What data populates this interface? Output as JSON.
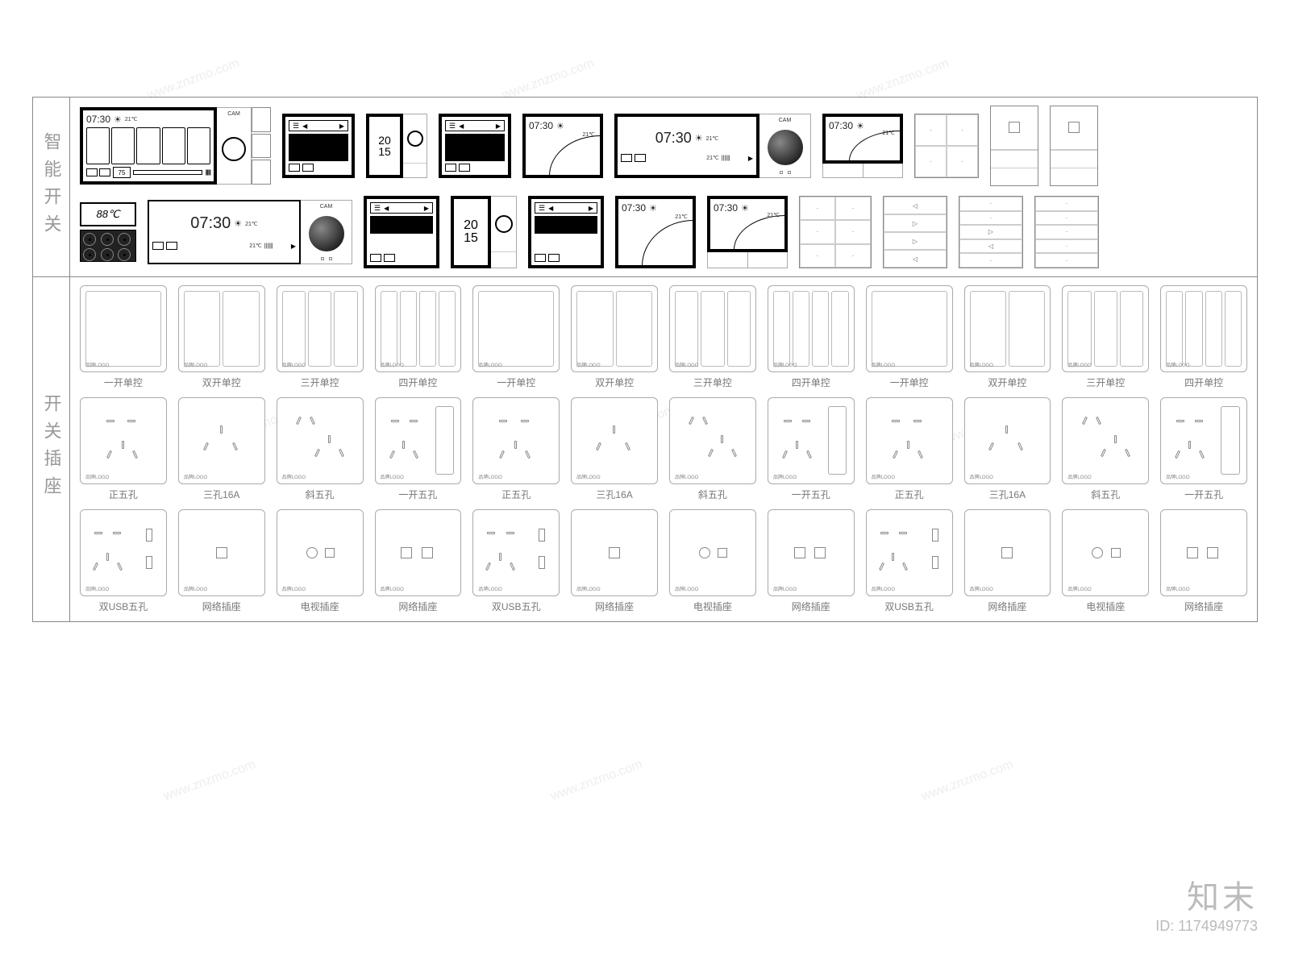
{
  "sections": {
    "smart": {
      "label": "智能开关"
    },
    "outlet": {
      "label": "开关插座"
    }
  },
  "smart": {
    "time": "07:30",
    "temp": "21℃",
    "year": "20\n15",
    "cam": "CAM",
    "temp88": "88℃",
    "sun": "☀"
  },
  "switch_styles": [
    "一开单控",
    "双开单控",
    "三开单控",
    "四开单控"
  ],
  "sockets_row2": [
    "正五孔",
    "三孔16A",
    "斜五孔",
    "一开五孔"
  ],
  "sockets_row3": [
    "双USB五孔",
    "网络插座",
    "电视插座",
    "网络插座"
  ],
  "brand": "品牌LOGO",
  "watermark": {
    "name": "知末",
    "id": "ID: 1174949773",
    "url": "www.znzmo.com"
  },
  "colors": {
    "border": "#888",
    "text": "#777",
    "device": "#000"
  }
}
